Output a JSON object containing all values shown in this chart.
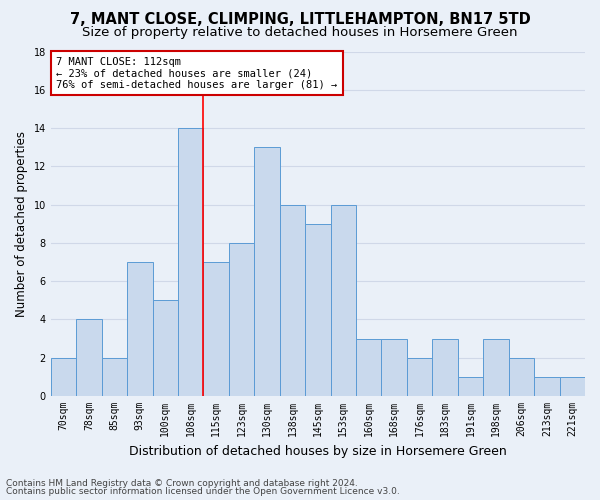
{
  "title": "7, MANT CLOSE, CLIMPING, LITTLEHAMPTON, BN17 5TD",
  "subtitle": "Size of property relative to detached houses in Horsemere Green",
  "xlabel": "Distribution of detached houses by size in Horsemere Green",
  "ylabel": "Number of detached properties",
  "categories": [
    "70sqm",
    "78sqm",
    "85sqm",
    "93sqm",
    "100sqm",
    "108sqm",
    "115sqm",
    "123sqm",
    "130sqm",
    "138sqm",
    "145sqm",
    "153sqm",
    "160sqm",
    "168sqm",
    "176sqm",
    "183sqm",
    "191sqm",
    "198sqm",
    "206sqm",
    "213sqm",
    "221sqm"
  ],
  "values": [
    2,
    4,
    2,
    7,
    5,
    14,
    7,
    8,
    13,
    10,
    9,
    10,
    3,
    3,
    2,
    3,
    1,
    3,
    2,
    1,
    1
  ],
  "bar_color": "#c9d9ed",
  "bar_edge_color": "#5b9bd5",
  "grid_color": "#d0d8e8",
  "background_color": "#eaf0f8",
  "redline_x": 5.5,
  "annotation_line1": "7 MANT CLOSE: 112sqm",
  "annotation_line2": "← 23% of detached houses are smaller (24)",
  "annotation_line3": "76% of semi-detached houses are larger (81) →",
  "annotation_box_color": "#ffffff",
  "annotation_box_edge": "#cc0000",
  "ylim": [
    0,
    18
  ],
  "yticks": [
    0,
    2,
    4,
    6,
    8,
    10,
    12,
    14,
    16,
    18
  ],
  "footer1": "Contains HM Land Registry data © Crown copyright and database right 2024.",
  "footer2": "Contains public sector information licensed under the Open Government Licence v3.0.",
  "title_fontsize": 10.5,
  "subtitle_fontsize": 9.5,
  "xlabel_fontsize": 9,
  "ylabel_fontsize": 8.5,
  "tick_fontsize": 7,
  "annotation_fontsize": 7.5,
  "footer_fontsize": 6.5
}
